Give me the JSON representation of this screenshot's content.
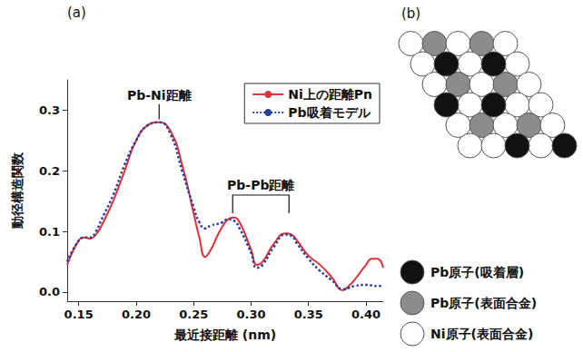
{
  "chart_data": {
    "type": "line",
    "panel": "(a)",
    "x_label": "最近接距離 (nm)",
    "y_label": "動径構造関数",
    "x": [
      0.14,
      0.15,
      0.155,
      0.16,
      0.165,
      0.17,
      0.18,
      0.19,
      0.2,
      0.21,
      0.22,
      0.23,
      0.24,
      0.25,
      0.255,
      0.26,
      0.265,
      0.27,
      0.275,
      0.28,
      0.285,
      0.29,
      0.3,
      0.305,
      0.31,
      0.32,
      0.33,
      0.335,
      0.34,
      0.35,
      0.36,
      0.37,
      0.38,
      0.385,
      0.39,
      0.4,
      0.405,
      0.41,
      0.415
    ],
    "series": [
      {
        "name": "Ni上の距離Pn",
        "color": "#e0303a",
        "line_style": "solid",
        "values": [
          0.045,
          0.085,
          0.09,
          0.088,
          0.095,
          0.11,
          0.15,
          0.2,
          0.25,
          0.275,
          0.28,
          0.265,
          0.21,
          0.13,
          0.09,
          0.058,
          0.07,
          0.09,
          0.108,
          0.12,
          0.123,
          0.115,
          0.07,
          0.045,
          0.05,
          0.08,
          0.097,
          0.095,
          0.085,
          0.06,
          0.045,
          0.025,
          0.003,
          0.01,
          0.02,
          0.045,
          0.055,
          0.055,
          0.04
        ]
      },
      {
        "name": "Pb吸着モデル",
        "color": "#2b3d9e",
        "line_style": "dotted",
        "values": [
          0.05,
          0.085,
          0.09,
          0.09,
          0.1,
          0.12,
          0.16,
          0.21,
          0.25,
          0.275,
          0.28,
          0.26,
          0.2,
          0.14,
          0.115,
          0.105,
          0.11,
          0.112,
          0.115,
          0.12,
          0.118,
          0.105,
          0.065,
          0.04,
          0.045,
          0.075,
          0.095,
          0.093,
          0.08,
          0.055,
          0.035,
          0.02,
          0.005,
          0.007,
          0.01,
          0.012,
          0.011,
          0.01,
          0.01
        ]
      }
    ],
    "xlim": [
      0.14,
      0.415
    ],
    "xticks": [
      0.15,
      {
        "value": 0.2,
        "label": "0.20"
      },
      0.25,
      {
        "value": 0.3,
        "label": "0.30"
      },
      0.35,
      {
        "value": 0.4,
        "label": "0.40"
      }
    ],
    "ylim": [
      -0.015,
      0.35
    ],
    "yticks": [
      {
        "value": 0,
        "label": "0.0"
      },
      0.1,
      0.2,
      0.3
    ],
    "grid": false,
    "legend": "upper right",
    "annotations": [
      {
        "text": "Pb-Ni距離",
        "x": [
          0.22
        ],
        "y": [
          0.285,
          0.31
        ]
      },
      {
        "text": "Pb-Pb距離",
        "x": [
          0.284,
          0.333
        ],
        "y": [
          0.13,
          0.16
        ]
      }
    ]
  },
  "diagram": {
    "panel": "(b)",
    "legend": [
      {
        "label": "Pb原子(吸着層)",
        "color": "#111111"
      },
      {
        "label": "Pb原子(表面合金)",
        "color": "#8c8c8c"
      },
      {
        "label": "Ni原子(表面合金)",
        "color": "#ffffff"
      }
    ],
    "rows": [
      [
        2,
        1,
        2,
        1,
        2
      ],
      [
        2,
        0,
        2,
        0,
        2
      ],
      [
        2,
        1,
        2,
        1,
        2
      ],
      [
        0,
        2,
        0,
        2,
        2
      ],
      [
        2,
        1,
        2,
        1,
        2
      ],
      [
        2,
        2,
        0,
        2,
        0
      ]
    ]
  }
}
